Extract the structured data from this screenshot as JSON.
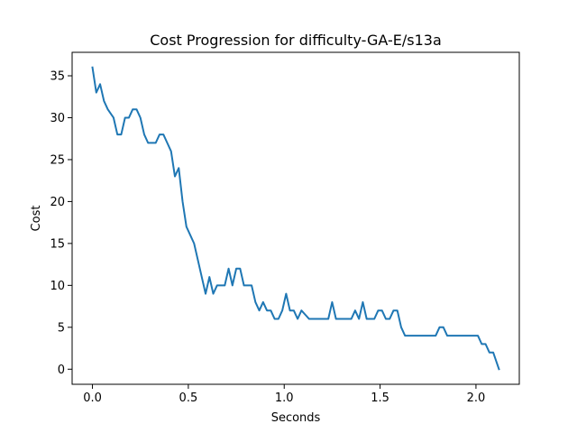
{
  "chart_data": {
    "type": "line",
    "title": "Cost Progression for difficulty-GA-E/s13a",
    "xlabel": "Seconds",
    "ylabel": "Cost",
    "xlim": [
      -0.106,
      2.226
    ],
    "ylim": [
      -1.8,
      37.8
    ],
    "x_ticks": [
      0.0,
      0.5,
      1.0,
      1.5,
      2.0
    ],
    "x_tick_labels": [
      "0.0",
      "0.5",
      "1.0",
      "1.5",
      "2.0"
    ],
    "y_ticks": [
      0,
      5,
      10,
      15,
      20,
      25,
      30,
      35
    ],
    "y_tick_labels": [
      "0",
      "5",
      "10",
      "15",
      "20",
      "25",
      "30",
      "35"
    ],
    "grid": false,
    "line_color": "#1f77b4",
    "series": [
      {
        "x": [
          0.0,
          0.02,
          0.04,
          0.06,
          0.08,
          0.11,
          0.13,
          0.15,
          0.17,
          0.19,
          0.21,
          0.23,
          0.25,
          0.27,
          0.29,
          0.31,
          0.33,
          0.35,
          0.37,
          0.39,
          0.41,
          0.43,
          0.45,
          0.47,
          0.49,
          0.51,
          0.53,
          0.55,
          0.57,
          0.59,
          0.61,
          0.63,
          0.65,
          0.67,
          0.69,
          0.71,
          0.73,
          0.75,
          0.77,
          0.79,
          0.81,
          0.83,
          0.85,
          0.87,
          0.89,
          0.91,
          0.93,
          0.95,
          0.97,
          0.99,
          1.01,
          1.03,
          1.05,
          1.07,
          1.09,
          1.11,
          1.13,
          1.15,
          1.17,
          1.19,
          1.21,
          1.23,
          1.25,
          1.27,
          1.29,
          1.31,
          1.33,
          1.35,
          1.37,
          1.39,
          1.41,
          1.43,
          1.45,
          1.47,
          1.49,
          1.51,
          1.53,
          1.55,
          1.57,
          1.59,
          1.61,
          1.63,
          1.65,
          1.67,
          1.69,
          1.71,
          1.73,
          1.75,
          1.77,
          1.79,
          1.81,
          1.83,
          1.85,
          1.87,
          1.89,
          1.91,
          1.93,
          1.95,
          1.97,
          1.99,
          2.01,
          2.03,
          2.05,
          2.07,
          2.09,
          2.12
        ],
        "y": [
          36,
          33,
          34,
          32,
          31,
          30,
          28,
          28,
          30,
          30,
          31,
          31,
          30,
          28,
          27,
          27,
          27,
          28,
          28,
          27,
          26,
          23,
          24,
          20,
          17,
          16,
          15,
          13,
          11,
          9,
          11,
          9,
          10,
          10,
          10,
          12,
          10,
          12,
          12,
          10,
          10,
          10,
          8,
          7,
          8,
          7,
          7,
          6,
          6,
          7,
          9,
          7,
          7,
          6,
          7,
          6.5,
          6,
          6,
          6,
          6,
          6,
          6,
          8,
          6,
          6,
          6,
          6,
          6,
          7,
          6,
          8,
          6,
          6,
          6,
          7,
          7,
          6,
          6,
          7,
          7,
          5,
          4,
          4,
          4,
          4,
          4,
          4,
          4,
          4,
          4,
          5,
          5,
          4,
          4,
          4,
          4,
          4,
          4,
          4,
          4,
          4,
          3,
          3,
          2,
          2,
          0
        ]
      }
    ]
  }
}
